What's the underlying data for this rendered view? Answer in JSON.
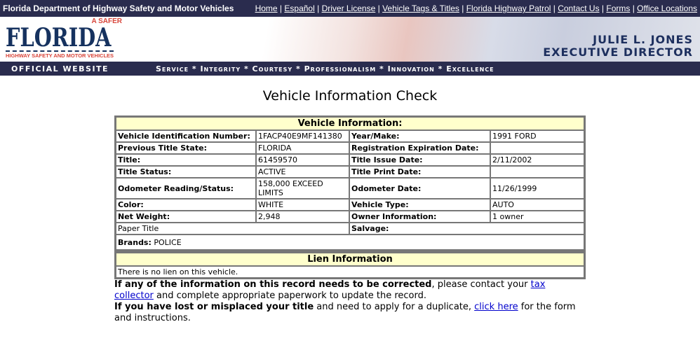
{
  "header": {
    "title": "Florida Department of Highway Safety and Motor Vehicles",
    "links": [
      "Home",
      "Español",
      "Driver License",
      "Vehicle Tags & Titles",
      "Florida Highway Patrol",
      "Contact Us",
      "Forms",
      "Office Locations"
    ],
    "logo": {
      "tag": "A SAFER",
      "name": "FLORIDA",
      "sub": "HIGHWAY SAFETY AND MOTOR VEHICLES"
    },
    "director_name": "JULIE L. JONES",
    "director_title": "EXECUTIVE DIRECTOR",
    "official": "OFFICIAL WEBSITE",
    "values": "Service * Integrity * Courtesy * Professionalism * Innovation * Excellence"
  },
  "page_title": "Vehicle Information Check",
  "vehicle": {
    "heading": "Vehicle Information:",
    "rows": [
      [
        "Vehicle Identification Number:",
        "1FACP40E9MF141380",
        "Year/Make:",
        "1991 FORD"
      ],
      [
        "Previous Title State:",
        "FLORIDA",
        "Registration Expiration Date:",
        ""
      ],
      [
        "Title:",
        "61459570",
        "Title Issue Date:",
        "2/11/2002"
      ],
      [
        "Title Status:",
        "ACTIVE",
        "Title Print Date:",
        ""
      ],
      [
        "Odometer Reading/Status:",
        "158,000 EXCEED LIMITS",
        "Odometer Date:",
        "11/26/1999"
      ],
      [
        "Color:",
        "WHITE",
        "Vehicle Type:",
        "AUTO"
      ],
      [
        "Net Weight:",
        "2,948",
        "Owner Information:",
        "1 owner"
      ]
    ],
    "paper_title": "Paper Title",
    "salvage_label": "Salvage:",
    "brands_label": "Brands:",
    "brands_value": "POLICE"
  },
  "lien": {
    "heading": "Lien Information",
    "text": "There is no lien on this vehicle."
  },
  "footer": {
    "p1_bold": "If any of the information on this record needs to be corrected",
    "p1_a": ", please contact your ",
    "p1_link": "tax collector",
    "p1_b": " and complete appropriate paperwork to update the record.",
    "p2_bold": "If you have lost or misplaced your title",
    "p2_a": " and need to apply for a duplicate, ",
    "p2_link": "click here",
    "p2_b": " for the form and instructions."
  }
}
